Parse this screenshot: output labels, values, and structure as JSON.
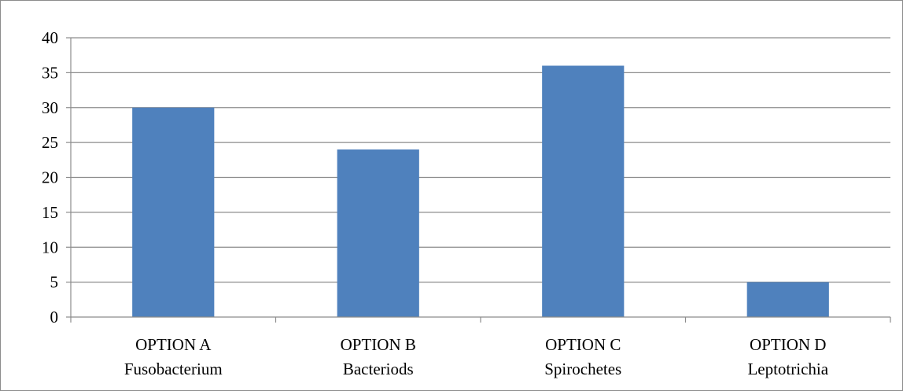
{
  "chart_data": {
    "type": "bar",
    "title": "",
    "xlabel": "",
    "ylabel": "",
    "categories": [
      {
        "line1": "OPTION A",
        "line2": "Fusobacterium"
      },
      {
        "line1": "OPTION B",
        "line2": "Bacteriods"
      },
      {
        "line1": "OPTION C",
        "line2": "Spirochetes"
      },
      {
        "line1": "OPTION D",
        "line2": "Leptotrichia"
      }
    ],
    "values": [
      30,
      24,
      36,
      5
    ],
    "ylim": [
      0,
      40
    ],
    "yticks": [
      0,
      5,
      10,
      15,
      20,
      25,
      30,
      35,
      40
    ],
    "grid": true,
    "legend": "none",
    "colors": {
      "bar": "#4f81bd",
      "grid": "#8c8c8c",
      "axis": "#8c8c8c"
    }
  }
}
